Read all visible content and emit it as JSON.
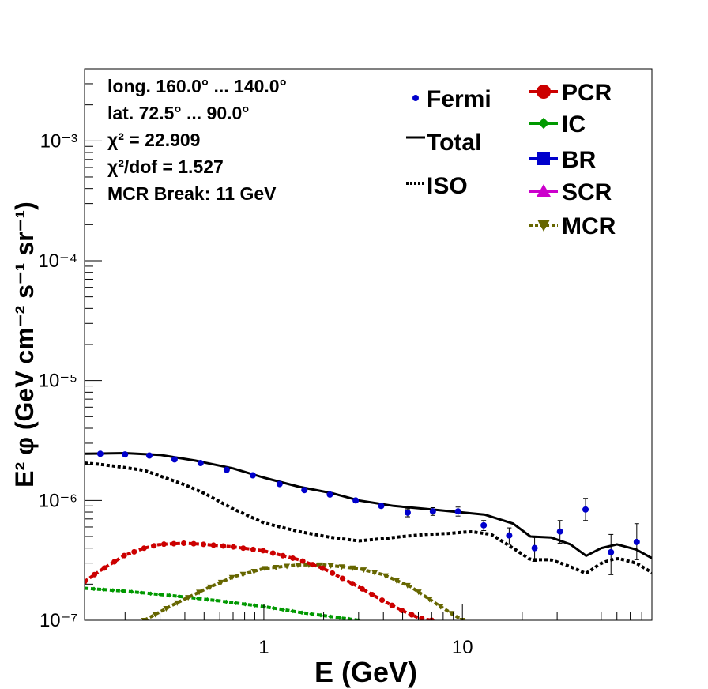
{
  "chart_data": {
    "type": "scatter",
    "xlabel": "E (GeV)",
    "ylabel": "E² φ (GeV cm⁻² s⁻¹ sr⁻¹)",
    "xscale": "log",
    "yscale": "log",
    "xlim": [
      0.125,
      90
    ],
    "ylim": [
      1e-07,
      0.004
    ],
    "x_ticks": [
      {
        "value": 1,
        "label": "1"
      },
      {
        "value": 10,
        "label": "10"
      }
    ],
    "y_ticks": [
      {
        "value": 1e-07,
        "label": "10⁻⁷"
      },
      {
        "value": 1e-06,
        "label": "10⁻⁶"
      },
      {
        "value": 1e-05,
        "label": "10⁻⁵"
      },
      {
        "value": 0.0001,
        "label": "10⁻⁴"
      },
      {
        "value": 0.001,
        "label": "10⁻³"
      }
    ],
    "info_text": [
      "long. 160.0° ... 140.0°",
      "lat. 72.5° ... 90.0°",
      "χ² = 22.909",
      "χ²/dof = 1.527",
      "MCR Break: 11 GeV"
    ],
    "legend_left": [
      {
        "label": "Fermi",
        "key": "fermi"
      },
      {
        "label": "Total",
        "key": "total"
      },
      {
        "label": "ISO",
        "key": "iso"
      }
    ],
    "legend_right": [
      {
        "label": "PCR",
        "key": "pcr"
      },
      {
        "label": "IC",
        "key": "ic"
      },
      {
        "label": "BR",
        "key": "br"
      },
      {
        "label": "SCR",
        "key": "scr"
      },
      {
        "label": "MCR",
        "key": "mcr"
      }
    ],
    "colors": {
      "fermi": "#0000cc",
      "total": "#000000",
      "iso": "#000000",
      "pcr": "#cc0000",
      "ic": "#009900",
      "br": "#0000cc",
      "scr": "#cc00cc",
      "mcr": "#666600"
    },
    "series": {
      "fermi": {
        "x": [
          0.15,
          0.2,
          0.265,
          0.355,
          0.48,
          0.65,
          0.88,
          1.2,
          1.6,
          2.15,
          2.9,
          3.9,
          5.3,
          7.1,
          9.5,
          12.8,
          17.2,
          23.1,
          31,
          41.7,
          56,
          75.5
        ],
        "y": [
          2.45e-06,
          2.42e-06,
          2.37e-06,
          2.2e-06,
          2.05e-06,
          1.8e-06,
          1.62e-06,
          1.37e-06,
          1.22e-06,
          1.12e-06,
          1e-06,
          9e-07,
          7.9e-07,
          8.1e-07,
          8.1e-07,
          6.2e-07,
          5.1e-07,
          4e-07,
          5.5e-07,
          8.4e-07,
          3.7e-07,
          4.5e-07
        ],
        "err_lo": [
          0,
          0,
          0,
          0,
          0,
          0,
          0,
          0,
          0,
          0,
          0,
          0,
          6e-08,
          6e-08,
          7e-08,
          6e-08,
          8e-08,
          9e-08,
          1.1e-07,
          1.6e-07,
          1.3e-07,
          1.3e-07
        ],
        "err_hi": [
          0,
          0,
          0,
          0,
          0,
          0,
          0,
          0,
          0,
          0,
          0,
          0,
          6e-08,
          6e-08,
          7e-08,
          6e-08,
          8e-08,
          9e-08,
          1.3e-07,
          2e-07,
          1.5e-07,
          1.9e-07
        ]
      },
      "total": {
        "x": [
          0.125,
          0.2,
          0.3,
          0.45,
          0.7,
          1.0,
          1.5,
          2.2,
          3.0,
          4.5,
          6.5,
          9.5,
          13,
          18,
          22,
          28,
          35,
          42,
          50,
          60,
          75,
          90
        ],
        "y": [
          2.45e-06,
          2.48e-06,
          2.4e-06,
          2.15e-06,
          1.85e-06,
          1.55e-06,
          1.3e-06,
          1.15e-06,
          1e-06,
          9e-07,
          8.5e-07,
          8e-07,
          7.6e-07,
          6.4e-07,
          5e-07,
          4.9e-07,
          4.3e-07,
          3.45e-07,
          4e-07,
          4.3e-07,
          3.9e-07,
          3.3e-07
        ]
      },
      "iso": {
        "x": [
          0.125,
          0.15,
          0.2,
          0.25,
          0.3,
          0.4,
          0.5,
          0.7,
          1.0,
          1.5,
          2.2,
          3.0,
          4.0,
          5.0,
          6.5,
          8.5,
          11,
          14,
          18,
          22,
          28,
          35,
          42,
          50,
          60,
          75,
          90
        ],
        "y": [
          2.05e-06,
          2e-06,
          1.88e-06,
          1.78e-06,
          1.6e-06,
          1.35e-06,
          1.15e-06,
          8.5e-07,
          6.5e-07,
          5.5e-07,
          4.9e-07,
          4.6e-07,
          4.8e-07,
          5e-07,
          5.2e-07,
          5.3e-07,
          5.5e-07,
          5.2e-07,
          4e-07,
          3.2e-07,
          3.2e-07,
          2.8e-07,
          2.45e-07,
          3e-07,
          3.3e-07,
          3e-07,
          2.5e-07
        ]
      },
      "pcr": {
        "x": [
          0.125,
          0.15,
          0.2,
          0.25,
          0.3,
          0.4,
          0.5,
          0.7,
          1.0,
          1.5,
          2.0,
          3.0,
          4.0,
          5.0,
          6.0,
          7.0
        ],
        "y": [
          2.1e-07,
          2.6e-07,
          3.5e-07,
          4e-07,
          4.3e-07,
          4.4e-07,
          4.3e-07,
          4.1e-07,
          3.8e-07,
          3.2e-07,
          2.7e-07,
          1.9e-07,
          1.45e-07,
          1.2e-07,
          1.05e-07,
          1e-07
        ]
      },
      "ic": {
        "x": [
          0.125,
          0.2,
          0.35,
          0.6,
          1.0,
          1.6,
          2.5,
          3.0
        ],
        "y": [
          1.85e-07,
          1.75e-07,
          1.6e-07,
          1.45e-07,
          1.3e-07,
          1.15e-07,
          1.04e-07,
          1e-07
        ]
      },
      "mcr": {
        "x": [
          0.25,
          0.35,
          0.5,
          0.7,
          1.0,
          1.5,
          2.0,
          3.0,
          4.0,
          5.5,
          7.5,
          10.0
        ],
        "y": [
          1e-07,
          1.35e-07,
          1.8e-07,
          2.3e-07,
          2.7e-07,
          2.9e-07,
          2.9e-07,
          2.7e-07,
          2.4e-07,
          1.9e-07,
          1.35e-07,
          1e-07
        ]
      }
    }
  }
}
